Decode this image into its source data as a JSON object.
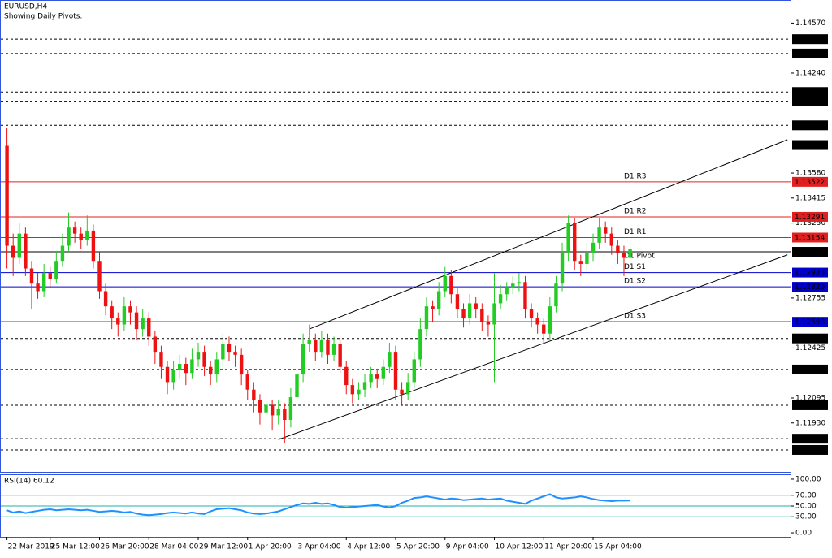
{
  "chart_data": {
    "type": "candlestick",
    "title": "EURUSD,H4",
    "subtitle": "Showing Daily Pivots.",
    "bull_color": "#22cc22",
    "bear_color": "#ee1111",
    "xlim": [
      -1,
      127
    ],
    "ylim": [
      1.11607,
      1.14717
    ],
    "xticks": [
      {
        "value": 0,
        "label": "22 Mar 2019"
      },
      {
        "value": 7,
        "label": "25 Mar 12:00"
      },
      {
        "value": 15,
        "label": "26 Mar 20:00"
      },
      {
        "value": 23,
        "label": "28 Mar 04:00"
      },
      {
        "value": 31,
        "label": "29 Mar 12:00"
      },
      {
        "value": 39,
        "label": "1 Apr 20:00"
      },
      {
        "value": 47,
        "label": "3 Apr 04:00"
      },
      {
        "value": 55,
        "label": "4 Apr 12:00"
      },
      {
        "value": 63,
        "label": "5 Apr 20:00"
      },
      {
        "value": 71,
        "label": "9 Apr 04:00"
      },
      {
        "value": 79,
        "label": "10 Apr 12:00"
      },
      {
        "value": 87,
        "label": "11 Apr 20:00"
      },
      {
        "value": 95,
        "label": "15 Apr 04:00"
      }
    ],
    "yticks": [
      {
        "value": 1.1457,
        "label": "1.14570"
      },
      {
        "value": 1.1424,
        "label": "1.14240"
      },
      {
        "value": 1.1358,
        "label": "1.13580"
      },
      {
        "value": 1.13415,
        "label": "1.13415"
      },
      {
        "value": 1.1325,
        "label": "1.13250"
      },
      {
        "value": 1.12755,
        "label": "1.12755"
      },
      {
        "value": 1.12425,
        "label": "1.12425"
      },
      {
        "value": 1.12095,
        "label": "1.12095"
      },
      {
        "value": 1.1193,
        "label": "1.11930"
      }
    ],
    "levels": [
      {
        "value": 1.14464,
        "label": "1.14464",
        "color": "#000000",
        "style": "dashed"
      },
      {
        "value": 1.14369,
        "label": "1.14369",
        "color": "#000000",
        "style": "dashed"
      },
      {
        "value": 1.14115,
        "label": "1.14115",
        "color": "#000000",
        "style": "dashed"
      },
      {
        "value": 1.14054,
        "label": "1.14054",
        "color": "#000000",
        "style": "dashed"
      },
      {
        "value": 1.13895,
        "label": "1.13895",
        "color": "#000000",
        "style": "dashed"
      },
      {
        "value": 1.13765,
        "label": "1.13765",
        "color": "#000000",
        "style": "dashed"
      },
      {
        "value": 1.13522,
        "label": "1.13522",
        "name": "D1 R3",
        "color": "#e02020",
        "style": "solid"
      },
      {
        "value": 1.13291,
        "label": "1.13291",
        "name": "D1 R2",
        "color": "#e02020",
        "style": "solid"
      },
      {
        "value": 1.13154,
        "label": "1.13154",
        "name": "D1 R1",
        "color": "#e02020",
        "style": "solid"
      },
      {
        "value": 1.1306,
        "label": "1.13060",
        "name": "D1 Pivot",
        "color": "#000000",
        "style": "solid"
      },
      {
        "value": 1.12923,
        "label": "1.12923",
        "name": "D1 S1",
        "color": "#0000cc",
        "style": "solid"
      },
      {
        "value": 1.12829,
        "label": "1.12829",
        "name": "D1 S2",
        "color": "#0000cc",
        "style": "solid"
      },
      {
        "value": 1.12598,
        "label": "1.12598",
        "name": "D1 S3",
        "color": "#0000cc",
        "style": "solid"
      },
      {
        "value": 1.12488,
        "label": "1.12488",
        "color": "#000000",
        "style": "dashed"
      },
      {
        "value": 1.12283,
        "label": "1.12283",
        "color": "#000000",
        "style": "dashed"
      },
      {
        "value": 1.12047,
        "label": "1.12047",
        "color": "#000000",
        "style": "dashed"
      },
      {
        "value": 1.11826,
        "label": "1.11826",
        "color": "#000000",
        "style": "dashed"
      },
      {
        "value": 1.11752,
        "label": "1.11752",
        "color": "#000000",
        "style": "dashed"
      }
    ],
    "trendlines": [
      {
        "from": [
          49,
          1.1255
        ],
        "to": [
          126.5,
          1.138
        ]
      },
      {
        "from": [
          44,
          1.1182
        ],
        "to": [
          126.5,
          1.1304
        ]
      }
    ],
    "candles": [
      [
        1.1376,
        1.1388,
        1.1295,
        1.131
      ],
      [
        1.131,
        1.1318,
        1.129,
        1.1302
      ],
      [
        1.1302,
        1.1325,
        1.1298,
        1.1318
      ],
      [
        1.1318,
        1.1322,
        1.129,
        1.1295
      ],
      [
        1.1295,
        1.13,
        1.1268,
        1.1285
      ],
      [
        1.1285,
        1.1292,
        1.1275,
        1.128
      ],
      [
        1.128,
        1.1298,
        1.1276,
        1.1292
      ],
      [
        1.1292,
        1.1296,
        1.1282,
        1.1288
      ],
      [
        1.1288,
        1.1306,
        1.1285,
        1.13
      ],
      [
        1.13,
        1.1318,
        1.1296,
        1.131
      ],
      [
        1.131,
        1.1332,
        1.1306,
        1.1322
      ],
      [
        1.1322,
        1.1326,
        1.1312,
        1.1318
      ],
      [
        1.1318,
        1.1322,
        1.1308,
        1.1314
      ],
      [
        1.1314,
        1.133,
        1.131,
        1.132
      ],
      [
        1.132,
        1.1324,
        1.1295,
        1.13
      ],
      [
        1.13,
        1.1306,
        1.1275,
        1.128
      ],
      [
        1.128,
        1.1285,
        1.1264,
        1.127
      ],
      [
        1.127,
        1.1274,
        1.1255,
        1.1262
      ],
      [
        1.1262,
        1.1266,
        1.125,
        1.1258
      ],
      [
        1.1258,
        1.1276,
        1.1254,
        1.127
      ],
      [
        1.127,
        1.1274,
        1.1258,
        1.1266
      ],
      [
        1.1266,
        1.127,
        1.1248,
        1.1255
      ],
      [
        1.1255,
        1.1268,
        1.125,
        1.1262
      ],
      [
        1.1262,
        1.1266,
        1.1244,
        1.125
      ],
      [
        1.125,
        1.1254,
        1.1232,
        1.124
      ],
      [
        1.124,
        1.1244,
        1.1222,
        1.123
      ],
      [
        1.123,
        1.1234,
        1.1212,
        1.122
      ],
      [
        1.122,
        1.1234,
        1.1215,
        1.1228
      ],
      [
        1.1228,
        1.1238,
        1.1222,
        1.1232
      ],
      [
        1.1232,
        1.1236,
        1.1218,
        1.1226
      ],
      [
        1.1226,
        1.1242,
        1.1222,
        1.1235
      ],
      [
        1.1235,
        1.1246,
        1.123,
        1.124
      ],
      [
        1.124,
        1.1244,
        1.1224,
        1.123
      ],
      [
        1.123,
        1.1234,
        1.1218,
        1.1225
      ],
      [
        1.1225,
        1.124,
        1.122,
        1.1235
      ],
      [
        1.1235,
        1.1252,
        1.123,
        1.1245
      ],
      [
        1.1245,
        1.125,
        1.1234,
        1.124
      ],
      [
        1.124,
        1.1244,
        1.123,
        1.1238
      ],
      [
        1.1238,
        1.1242,
        1.1218,
        1.1225
      ],
      [
        1.1225,
        1.1228,
        1.1208,
        1.1215
      ],
      [
        1.1215,
        1.122,
        1.12,
        1.1208
      ],
      [
        1.1208,
        1.1212,
        1.1192,
        1.12
      ],
      [
        1.12,
        1.1212,
        1.1195,
        1.1205
      ],
      [
        1.1205,
        1.1208,
        1.1188,
        1.1198
      ],
      [
        1.1198,
        1.1208,
        1.1192,
        1.1202
      ],
      [
        1.1202,
        1.1206,
        1.118,
        1.1195
      ],
      [
        1.1195,
        1.1216,
        1.119,
        1.121
      ],
      [
        1.121,
        1.1232,
        1.1206,
        1.1225
      ],
      [
        1.1225,
        1.1252,
        1.122,
        1.1245
      ],
      [
        1.1245,
        1.1258,
        1.124,
        1.1248
      ],
      [
        1.1248,
        1.1252,
        1.1234,
        1.124
      ],
      [
        1.124,
        1.1254,
        1.1236,
        1.1248
      ],
      [
        1.1248,
        1.1252,
        1.1232,
        1.1238
      ],
      [
        1.1238,
        1.125,
        1.1234,
        1.1245
      ],
      [
        1.1245,
        1.1248,
        1.1226,
        1.123
      ],
      [
        1.123,
        1.1234,
        1.1212,
        1.1218
      ],
      [
        1.1218,
        1.1222,
        1.1206,
        1.1212
      ],
      [
        1.1212,
        1.122,
        1.1208,
        1.1215
      ],
      [
        1.1215,
        1.1225,
        1.121,
        1.122
      ],
      [
        1.122,
        1.123,
        1.1216,
        1.1225
      ],
      [
        1.1225,
        1.1228,
        1.1216,
        1.1222
      ],
      [
        1.1222,
        1.1235,
        1.1218,
        1.123
      ],
      [
        1.123,
        1.1246,
        1.1226,
        1.124
      ],
      [
        1.124,
        1.1244,
        1.1208,
        1.1215
      ],
      [
        1.1215,
        1.122,
        1.1205,
        1.1212
      ],
      [
        1.1212,
        1.1226,
        1.1208,
        1.122
      ],
      [
        1.122,
        1.124,
        1.1216,
        1.1235
      ],
      [
        1.1235,
        1.1262,
        1.123,
        1.1255
      ],
      [
        1.1255,
        1.1276,
        1.125,
        1.127
      ],
      [
        1.127,
        1.1274,
        1.126,
        1.1268
      ],
      [
        1.1268,
        1.1286,
        1.1264,
        1.128
      ],
      [
        1.128,
        1.1296,
        1.1276,
        1.129
      ],
      [
        1.129,
        1.1294,
        1.1272,
        1.1278
      ],
      [
        1.1278,
        1.1282,
        1.1262,
        1.1268
      ],
      [
        1.1268,
        1.1272,
        1.1256,
        1.1262
      ],
      [
        1.1262,
        1.1278,
        1.1258,
        1.1272
      ],
      [
        1.1272,
        1.1276,
        1.1262,
        1.1268
      ],
      [
        1.1268,
        1.1272,
        1.1254,
        1.126
      ],
      [
        1.126,
        1.1264,
        1.125,
        1.1258
      ],
      [
        1.1258,
        1.1292,
        1.122,
        1.1272
      ],
      [
        1.1272,
        1.1284,
        1.1268,
        1.1278
      ],
      [
        1.1278,
        1.1286,
        1.1274,
        1.1282
      ],
      [
        1.1282,
        1.129,
        1.1278,
        1.1285
      ],
      [
        1.1285,
        1.1292,
        1.128,
        1.1286
      ],
      [
        1.1286,
        1.129,
        1.1262,
        1.1268
      ],
      [
        1.1268,
        1.1272,
        1.1256,
        1.1262
      ],
      [
        1.1262,
        1.1266,
        1.1252,
        1.1258
      ],
      [
        1.1258,
        1.1262,
        1.1246,
        1.1252
      ],
      [
        1.1252,
        1.1276,
        1.1248,
        1.127
      ],
      [
        1.127,
        1.129,
        1.1266,
        1.1285
      ],
      [
        1.1285,
        1.1312,
        1.128,
        1.1305
      ],
      [
        1.1305,
        1.133,
        1.13,
        1.1325
      ],
      [
        1.1325,
        1.1328,
        1.1294,
        1.13
      ],
      [
        1.13,
        1.1304,
        1.129,
        1.1298
      ],
      [
        1.1298,
        1.1312,
        1.1294,
        1.1305
      ],
      [
        1.1305,
        1.1318,
        1.13,
        1.1312
      ],
      [
        1.1312,
        1.1328,
        1.1308,
        1.1322
      ],
      [
        1.1322,
        1.1326,
        1.1312,
        1.1318
      ],
      [
        1.1318,
        1.1322,
        1.1304,
        1.131
      ],
      [
        1.131,
        1.1314,
        1.1298,
        1.1305
      ],
      [
        1.1305,
        1.131,
        1.129,
        1.1302
      ],
      [
        1.1302,
        1.1312,
        1.1298,
        1.1308
      ]
    ],
    "rsi": {
      "title": "RSI(14) 60.12",
      "color": "#1e90ff",
      "level_color": "#20b2aa",
      "ylim": [
        -7.5,
        107.5
      ],
      "yticks": [
        {
          "value": 100,
          "label": "100.00"
        },
        {
          "value": 70,
          "label": "70.00"
        },
        {
          "value": 50,
          "label": "50.00"
        },
        {
          "value": 30,
          "label": "30.00"
        },
        {
          "value": 0,
          "label": "0.00"
        }
      ],
      "levels": [
        70,
        50,
        30
      ],
      "values": [
        42,
        38,
        40,
        37,
        39,
        41,
        43,
        44,
        42,
        43,
        44,
        43,
        42,
        43,
        41,
        39,
        40,
        41,
        40,
        38,
        39,
        36,
        34,
        33,
        34,
        35,
        37,
        38,
        37,
        36,
        38,
        36,
        35,
        40,
        44,
        45,
        46,
        44,
        42,
        38,
        36,
        35,
        36,
        38,
        40,
        44,
        48,
        52,
        55,
        54,
        56,
        54,
        55,
        52,
        48,
        47,
        48,
        49,
        50,
        51,
        52,
        49,
        47,
        50,
        56,
        60,
        65,
        66,
        68,
        66,
        64,
        62,
        64,
        63,
        61,
        62,
        63,
        64,
        62,
        63,
        64,
        60,
        58,
        56,
        54,
        60,
        64,
        68,
        72,
        66,
        64,
        65,
        66,
        68,
        66,
        63,
        61,
        60,
        59,
        60,
        60,
        60.12
      ]
    }
  }
}
